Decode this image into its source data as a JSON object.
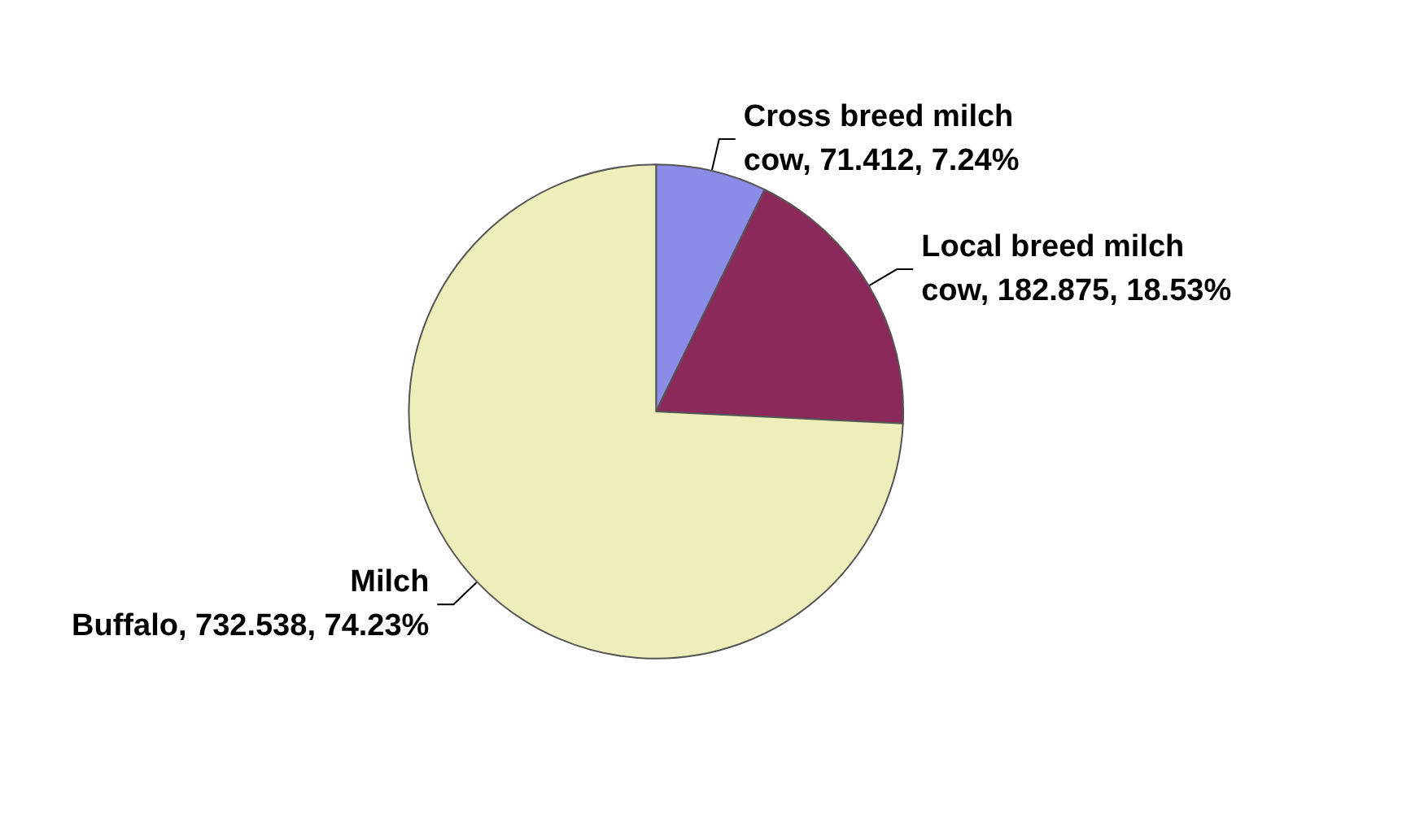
{
  "chart_data": {
    "type": "pie",
    "categories": [
      "Cross breed milch cow",
      "Local breed milch cow",
      "Milch Buffalo"
    ],
    "values": [
      71.412,
      182.875,
      732.538
    ],
    "value_labels": [
      "71.412, 7.24%",
      "182.875, 18.53%",
      "732.538, 74.23%"
    ],
    "colors": [
      "#8b8be8",
      "#8b2a5a",
      "#eeeebb"
    ],
    "legend": false
  }
}
